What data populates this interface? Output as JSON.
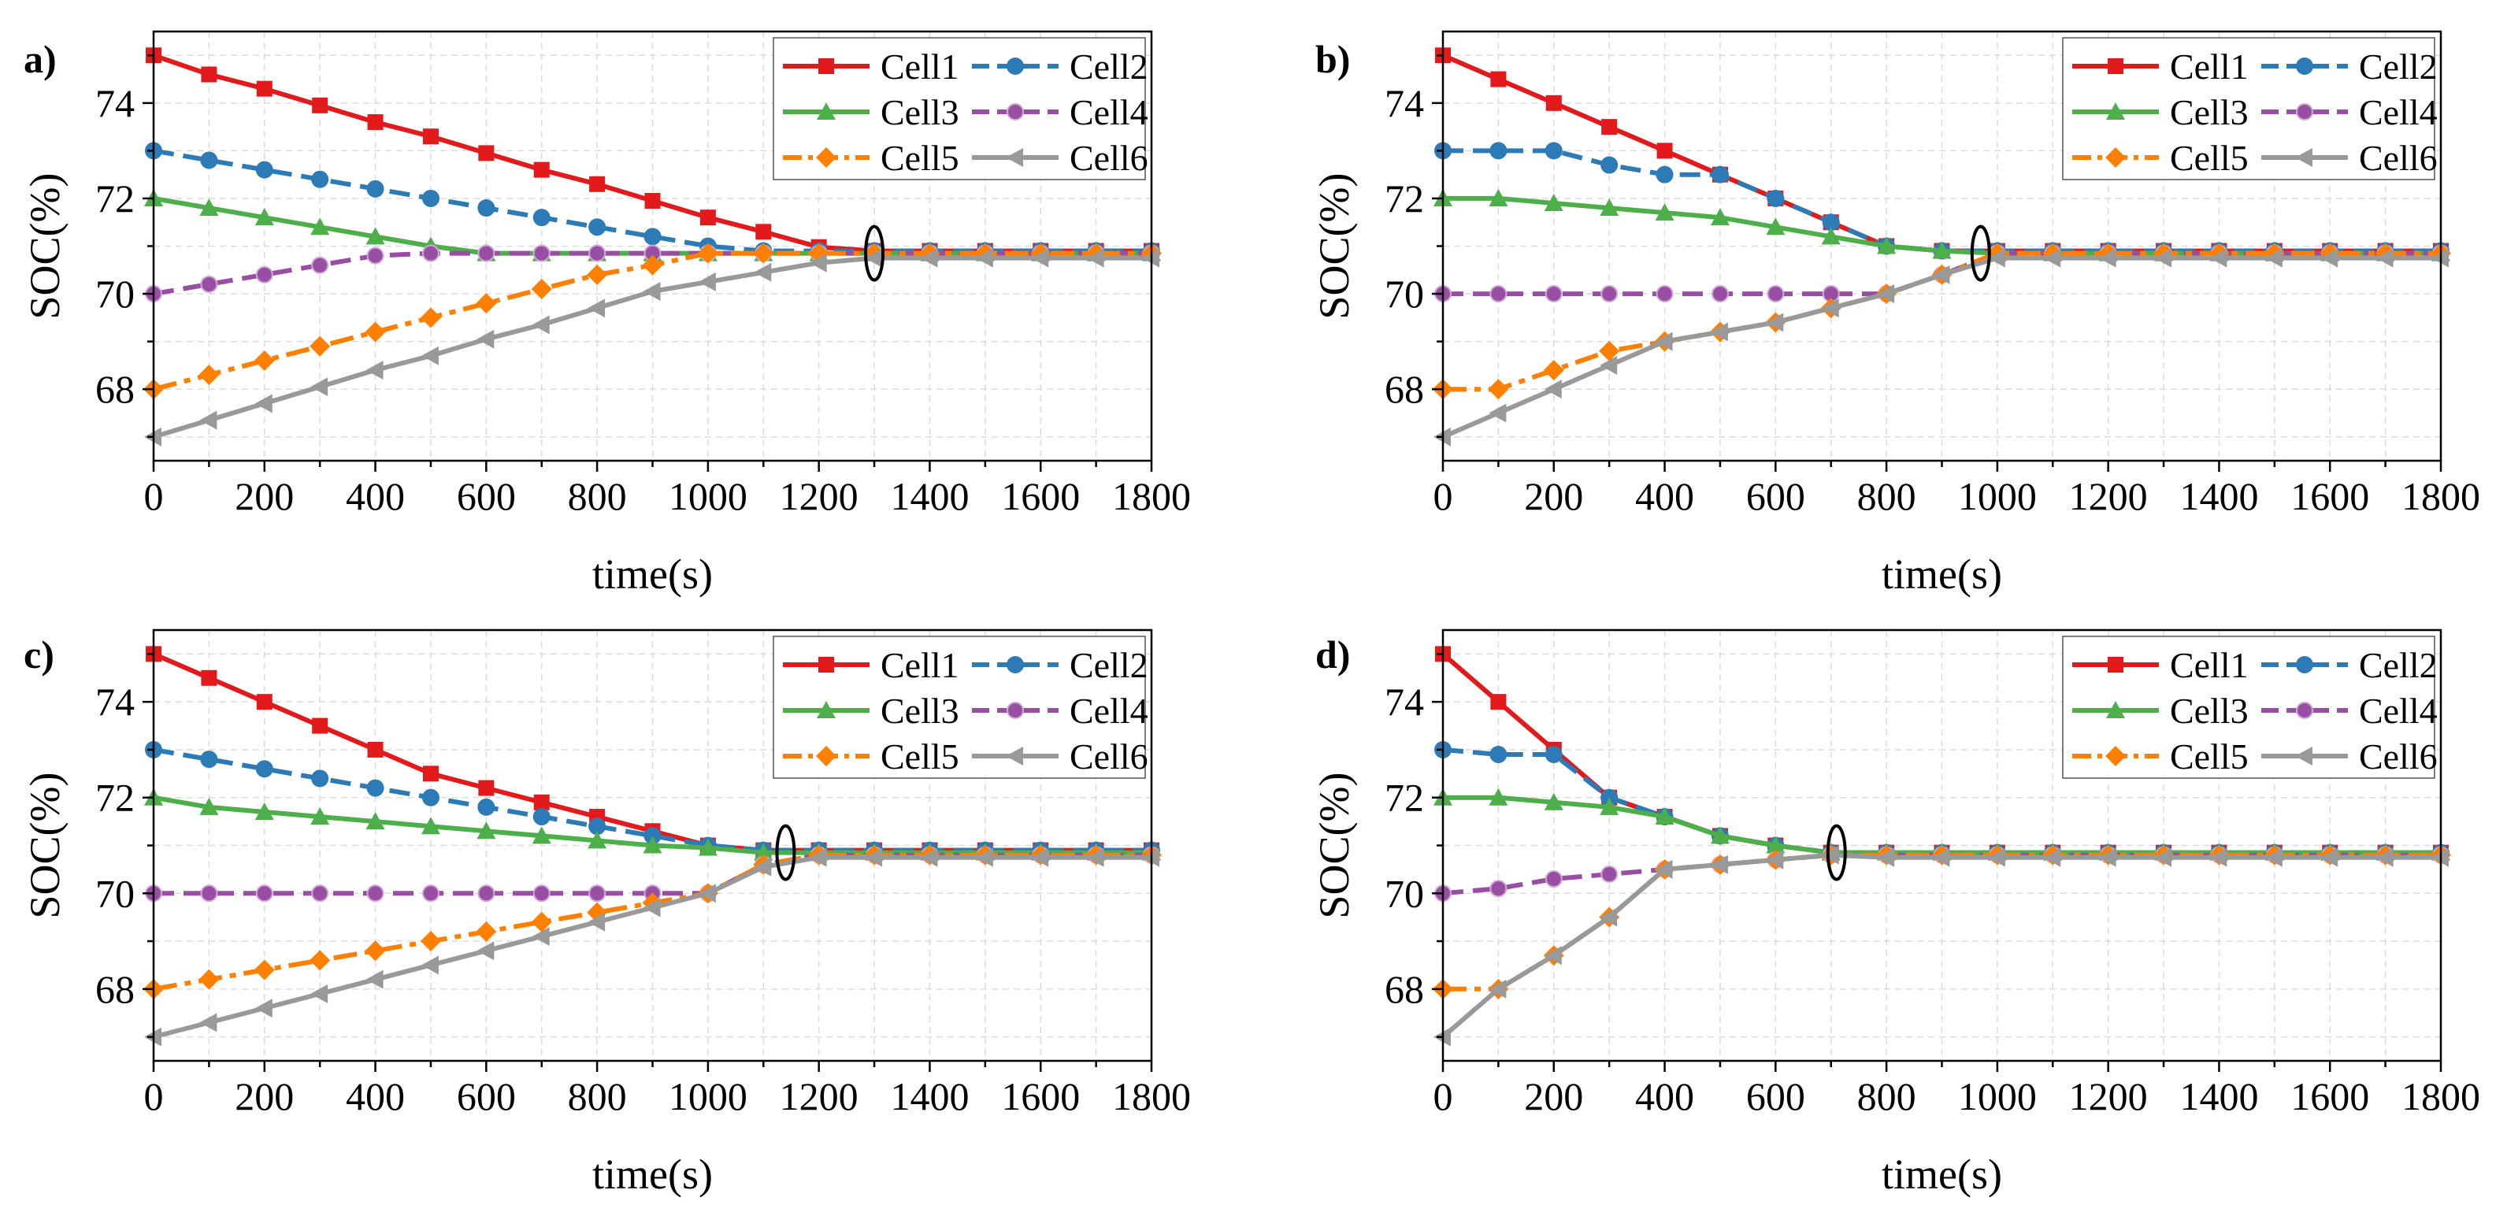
{
  "chart_data": [
    {
      "type": "line",
      "panel_label": "a)",
      "xlabel": "time(s)",
      "ylabel": "SOC(%)",
      "xlim": [
        0,
        1800
      ],
      "ylim": [
        66.5,
        75.5
      ],
      "xticks": [
        0,
        200,
        400,
        600,
        800,
        1000,
        1200,
        1400,
        1600,
        1800
      ],
      "yticks": [
        68,
        70,
        72,
        74
      ],
      "grid": true,
      "legend_position": "top-right",
      "convergence_time": 1300,
      "x": [
        0,
        100,
        200,
        300,
        400,
        500,
        600,
        700,
        800,
        900,
        1000,
        1100,
        1200,
        1300,
        1400,
        1500,
        1600,
        1700,
        1800
      ],
      "series": [
        {
          "name": "Cell1",
          "values": [
            75.0,
            74.6,
            74.3,
            73.95,
            73.6,
            73.3,
            72.95,
            72.6,
            72.3,
            71.95,
            71.6,
            71.3,
            70.98,
            70.9,
            70.9,
            70.9,
            70.9,
            70.9,
            70.9
          ]
        },
        {
          "name": "Cell2",
          "values": [
            73.0,
            72.8,
            72.6,
            72.4,
            72.2,
            72.0,
            71.8,
            71.6,
            71.4,
            71.2,
            71.0,
            70.9,
            70.9,
            70.9,
            70.9,
            70.9,
            70.9,
            70.9,
            70.9
          ]
        },
        {
          "name": "Cell3",
          "values": [
            72.0,
            71.8,
            71.6,
            71.4,
            71.2,
            71.0,
            70.85,
            70.85,
            70.85,
            70.85,
            70.85,
            70.85,
            70.85,
            70.85,
            70.85,
            70.85,
            70.85,
            70.85,
            70.85
          ]
        },
        {
          "name": "Cell4",
          "values": [
            70.0,
            70.2,
            70.4,
            70.6,
            70.8,
            70.85,
            70.85,
            70.85,
            70.85,
            70.85,
            70.85,
            70.85,
            70.85,
            70.85,
            70.85,
            70.85,
            70.85,
            70.85,
            70.85
          ]
        },
        {
          "name": "Cell5",
          "values": [
            68.0,
            68.3,
            68.6,
            68.9,
            69.2,
            69.5,
            69.8,
            70.1,
            70.4,
            70.6,
            70.85,
            70.85,
            70.85,
            70.85,
            70.85,
            70.85,
            70.85,
            70.85,
            70.85
          ]
        },
        {
          "name": "Cell6",
          "values": [
            67.0,
            67.35,
            67.7,
            68.05,
            68.4,
            68.7,
            69.05,
            69.35,
            69.7,
            70.05,
            70.25,
            70.45,
            70.65,
            70.75,
            70.75,
            70.75,
            70.75,
            70.75,
            70.75
          ]
        }
      ]
    },
    {
      "type": "line",
      "panel_label": "b)",
      "xlabel": "time(s)",
      "ylabel": "SOC(%)",
      "xlim": [
        0,
        1800
      ],
      "ylim": [
        66.5,
        75.5
      ],
      "xticks": [
        0,
        200,
        400,
        600,
        800,
        1000,
        1200,
        1400,
        1600,
        1800
      ],
      "yticks": [
        68,
        70,
        72,
        74
      ],
      "grid": true,
      "legend_position": "top-right",
      "convergence_time": 970,
      "x": [
        0,
        100,
        200,
        300,
        400,
        500,
        600,
        700,
        800,
        900,
        1000,
        1100,
        1200,
        1300,
        1400,
        1500,
        1600,
        1700,
        1800
      ],
      "series": [
        {
          "name": "Cell1",
          "values": [
            75.0,
            74.5,
            74.0,
            73.5,
            73.0,
            72.5,
            72.0,
            71.5,
            71.0,
            70.9,
            70.9,
            70.9,
            70.9,
            70.9,
            70.9,
            70.9,
            70.9,
            70.9,
            70.9
          ]
        },
        {
          "name": "Cell2",
          "values": [
            73.0,
            73.0,
            73.0,
            72.7,
            72.5,
            72.5,
            72.0,
            71.5,
            71.0,
            70.9,
            70.9,
            70.9,
            70.9,
            70.9,
            70.9,
            70.9,
            70.9,
            70.9,
            70.9
          ]
        },
        {
          "name": "Cell3",
          "values": [
            72.0,
            72.0,
            71.9,
            71.8,
            71.7,
            71.6,
            71.4,
            71.2,
            71.0,
            70.9,
            70.85,
            70.85,
            70.85,
            70.85,
            70.85,
            70.85,
            70.85,
            70.85,
            70.85
          ]
        },
        {
          "name": "Cell4",
          "values": [
            70.0,
            70.0,
            70.0,
            70.0,
            70.0,
            70.0,
            70.0,
            70.0,
            70.0,
            70.4,
            70.85,
            70.85,
            70.85,
            70.85,
            70.85,
            70.85,
            70.85,
            70.85,
            70.85
          ]
        },
        {
          "name": "Cell5",
          "values": [
            68.0,
            68.0,
            68.4,
            68.8,
            69.0,
            69.2,
            69.4,
            69.7,
            70.0,
            70.4,
            70.85,
            70.85,
            70.85,
            70.85,
            70.85,
            70.85,
            70.85,
            70.85,
            70.85
          ]
        },
        {
          "name": "Cell6",
          "values": [
            67.0,
            67.5,
            68.0,
            68.5,
            69.0,
            69.2,
            69.4,
            69.7,
            70.0,
            70.4,
            70.75,
            70.75,
            70.75,
            70.75,
            70.75,
            70.75,
            70.75,
            70.75,
            70.75
          ]
        }
      ]
    },
    {
      "type": "line",
      "panel_label": "c)",
      "xlabel": "time(s)",
      "ylabel": "SOC(%)",
      "xlim": [
        0,
        1800
      ],
      "ylim": [
        66.5,
        75.5
      ],
      "xticks": [
        0,
        200,
        400,
        600,
        800,
        1000,
        1200,
        1400,
        1600,
        1800
      ],
      "yticks": [
        68,
        70,
        72,
        74
      ],
      "grid": true,
      "legend_position": "top-right",
      "convergence_time": 1140,
      "x": [
        0,
        100,
        200,
        300,
        400,
        500,
        600,
        700,
        800,
        900,
        1000,
        1100,
        1200,
        1300,
        1400,
        1500,
        1600,
        1700,
        1800
      ],
      "series": [
        {
          "name": "Cell1",
          "values": [
            75.0,
            74.5,
            74.0,
            73.5,
            73.0,
            72.5,
            72.2,
            71.9,
            71.6,
            71.3,
            71.0,
            70.9,
            70.9,
            70.9,
            70.9,
            70.9,
            70.9,
            70.9,
            70.9
          ]
        },
        {
          "name": "Cell2",
          "values": [
            73.0,
            72.8,
            72.6,
            72.4,
            72.2,
            72.0,
            71.8,
            71.6,
            71.4,
            71.2,
            71.0,
            70.9,
            70.9,
            70.9,
            70.9,
            70.9,
            70.9,
            70.9,
            70.9
          ]
        },
        {
          "name": "Cell3",
          "values": [
            72.0,
            71.8,
            71.7,
            71.6,
            71.5,
            71.4,
            71.3,
            71.2,
            71.1,
            71.0,
            70.95,
            70.85,
            70.85,
            70.85,
            70.85,
            70.85,
            70.85,
            70.85,
            70.85
          ]
        },
        {
          "name": "Cell4",
          "values": [
            70.0,
            70.0,
            70.0,
            70.0,
            70.0,
            70.0,
            70.0,
            70.0,
            70.0,
            70.0,
            70.0,
            70.6,
            70.8,
            70.8,
            70.8,
            70.8,
            70.8,
            70.8,
            70.8
          ]
        },
        {
          "name": "Cell5",
          "values": [
            68.0,
            68.2,
            68.4,
            68.6,
            68.8,
            69.0,
            69.2,
            69.4,
            69.6,
            69.8,
            70.0,
            70.6,
            70.8,
            70.8,
            70.8,
            70.8,
            70.8,
            70.8,
            70.8
          ]
        },
        {
          "name": "Cell6",
          "values": [
            67.0,
            67.3,
            67.6,
            67.9,
            68.2,
            68.5,
            68.8,
            69.1,
            69.4,
            69.7,
            70.0,
            70.55,
            70.75,
            70.75,
            70.75,
            70.75,
            70.75,
            70.75,
            70.75
          ]
        }
      ]
    },
    {
      "type": "line",
      "panel_label": "d)",
      "xlabel": "time(s)",
      "ylabel": "SOC(%)",
      "xlim": [
        0,
        1800
      ],
      "ylim": [
        66.5,
        75.5
      ],
      "xticks": [
        0,
        200,
        400,
        600,
        800,
        1000,
        1200,
        1400,
        1600,
        1800
      ],
      "yticks": [
        68,
        70,
        72,
        74
      ],
      "grid": true,
      "legend_position": "top-right",
      "convergence_time": 710,
      "x": [
        0,
        100,
        200,
        300,
        400,
        500,
        600,
        700,
        800,
        900,
        1000,
        1100,
        1200,
        1300,
        1400,
        1500,
        1600,
        1700,
        1800
      ],
      "series": [
        {
          "name": "Cell1",
          "values": [
            75.0,
            74.0,
            73.0,
            72.0,
            71.6,
            71.2,
            71.0,
            70.85,
            70.85,
            70.85,
            70.85,
            70.85,
            70.85,
            70.85,
            70.85,
            70.85,
            70.85,
            70.85,
            70.85
          ]
        },
        {
          "name": "Cell2",
          "values": [
            73.0,
            72.9,
            72.9,
            72.0,
            71.6,
            71.2,
            71.0,
            70.85,
            70.85,
            70.85,
            70.85,
            70.85,
            70.85,
            70.85,
            70.85,
            70.85,
            70.85,
            70.85,
            70.85
          ]
        },
        {
          "name": "Cell3",
          "values": [
            72.0,
            72.0,
            71.9,
            71.8,
            71.6,
            71.2,
            71.0,
            70.85,
            70.85,
            70.85,
            70.85,
            70.85,
            70.85,
            70.85,
            70.85,
            70.85,
            70.85,
            70.85,
            70.85
          ]
        },
        {
          "name": "Cell4",
          "values": [
            70.0,
            70.1,
            70.3,
            70.4,
            70.5,
            70.6,
            70.7,
            70.8,
            70.8,
            70.8,
            70.8,
            70.8,
            70.8,
            70.8,
            70.8,
            70.8,
            70.8,
            70.8,
            70.8
          ]
        },
        {
          "name": "Cell5",
          "values": [
            68.0,
            68.0,
            68.7,
            69.5,
            70.5,
            70.6,
            70.7,
            70.8,
            70.8,
            70.8,
            70.8,
            70.8,
            70.8,
            70.8,
            70.8,
            70.8,
            70.8,
            70.8,
            70.8
          ]
        },
        {
          "name": "Cell6",
          "values": [
            67.0,
            68.0,
            68.7,
            69.5,
            70.5,
            70.6,
            70.7,
            70.8,
            70.75,
            70.75,
            70.75,
            70.75,
            70.75,
            70.75,
            70.75,
            70.75,
            70.75,
            70.75,
            70.75
          ]
        }
      ]
    }
  ],
  "series_style": [
    {
      "name": "Cell1",
      "color": "#e31a1c",
      "marker": "square",
      "dash": "solid"
    },
    {
      "name": "Cell2",
      "color": "#2c7bb6",
      "marker": "circle",
      "dash": "dashed"
    },
    {
      "name": "Cell3",
      "color": "#4daf4a",
      "marker": "triangle-up",
      "dash": "solid"
    },
    {
      "name": "Cell4",
      "color": "#984ea3",
      "marker": "sphere",
      "dash": "dashed"
    },
    {
      "name": "Cell5",
      "color": "#ff7f00",
      "marker": "diamond",
      "dash": "dashdot"
    },
    {
      "name": "Cell6",
      "color": "#999999",
      "marker": "triangle-left",
      "dash": "solid"
    }
  ]
}
